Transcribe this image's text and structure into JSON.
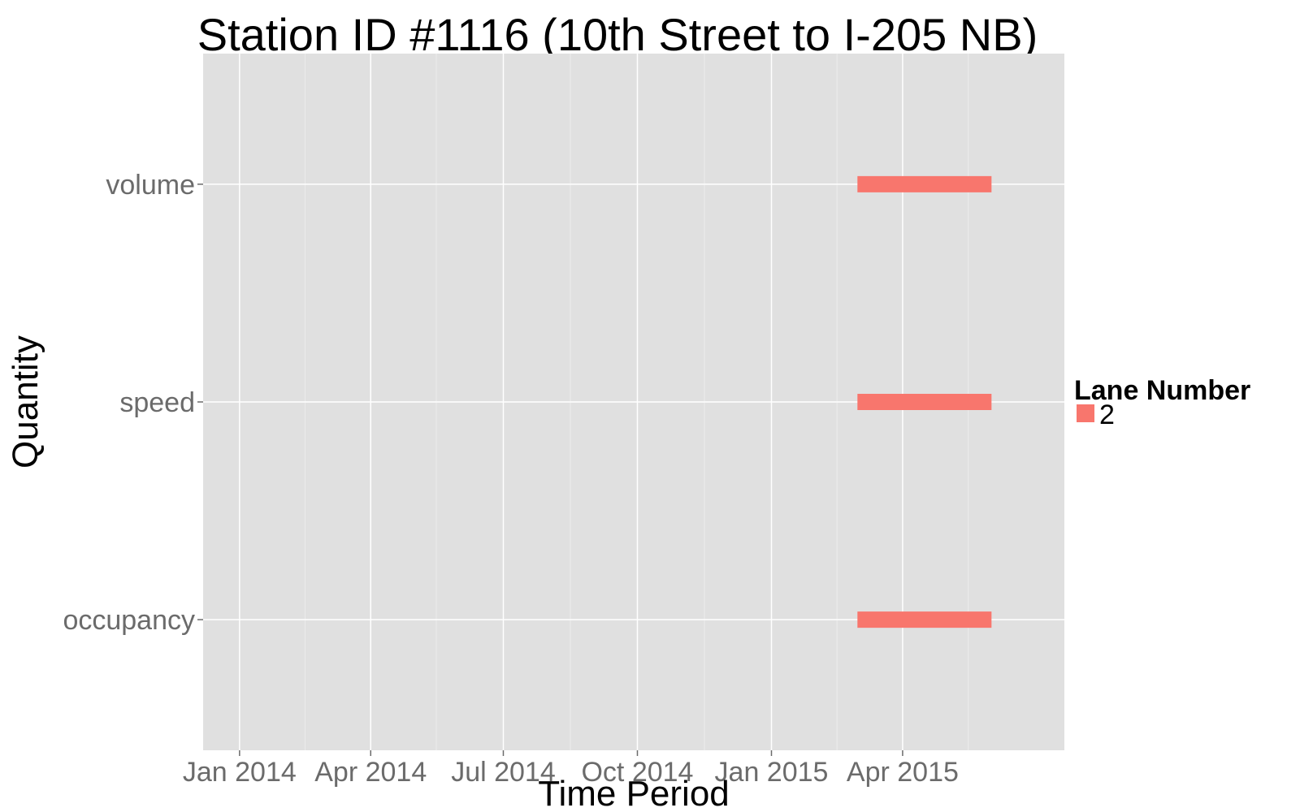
{
  "chart_data": {
    "type": "timeline-bar",
    "title": "Station ID #1116 (10th Street to I-205 NB)",
    "xlabel": "Time Period",
    "ylabel": "Quantity",
    "x_ticks": [
      {
        "label": "Jan 2014",
        "date": "2014-01-01"
      },
      {
        "label": "Apr 2014",
        "date": "2014-04-01"
      },
      {
        "label": "Jul 2014",
        "date": "2014-07-01"
      },
      {
        "label": "Oct 2014",
        "date": "2014-10-01"
      },
      {
        "label": "Jan 2015",
        "date": "2015-01-01"
      },
      {
        "label": "Apr 2015",
        "date": "2015-04-01"
      }
    ],
    "xlim": [
      "2013-12-07",
      "2015-07-21"
    ],
    "categories": [
      "occupancy",
      "speed",
      "volume"
    ],
    "legend": {
      "title": "Lane Number",
      "position": "right",
      "entries": [
        {
          "label": "2",
          "color": "#f8766d"
        }
      ]
    },
    "series": [
      {
        "name": "2",
        "color": "#f8766d",
        "segments": [
          {
            "category": "volume",
            "start": "2015-03-01",
            "end": "2015-06-01"
          },
          {
            "category": "speed",
            "start": "2015-03-01",
            "end": "2015-06-01"
          },
          {
            "category": "occupancy",
            "start": "2015-03-01",
            "end": "2015-06-01"
          }
        ]
      }
    ],
    "grid": true,
    "panel_color": "#e0e0e0",
    "grid_color": "#ffffff"
  }
}
